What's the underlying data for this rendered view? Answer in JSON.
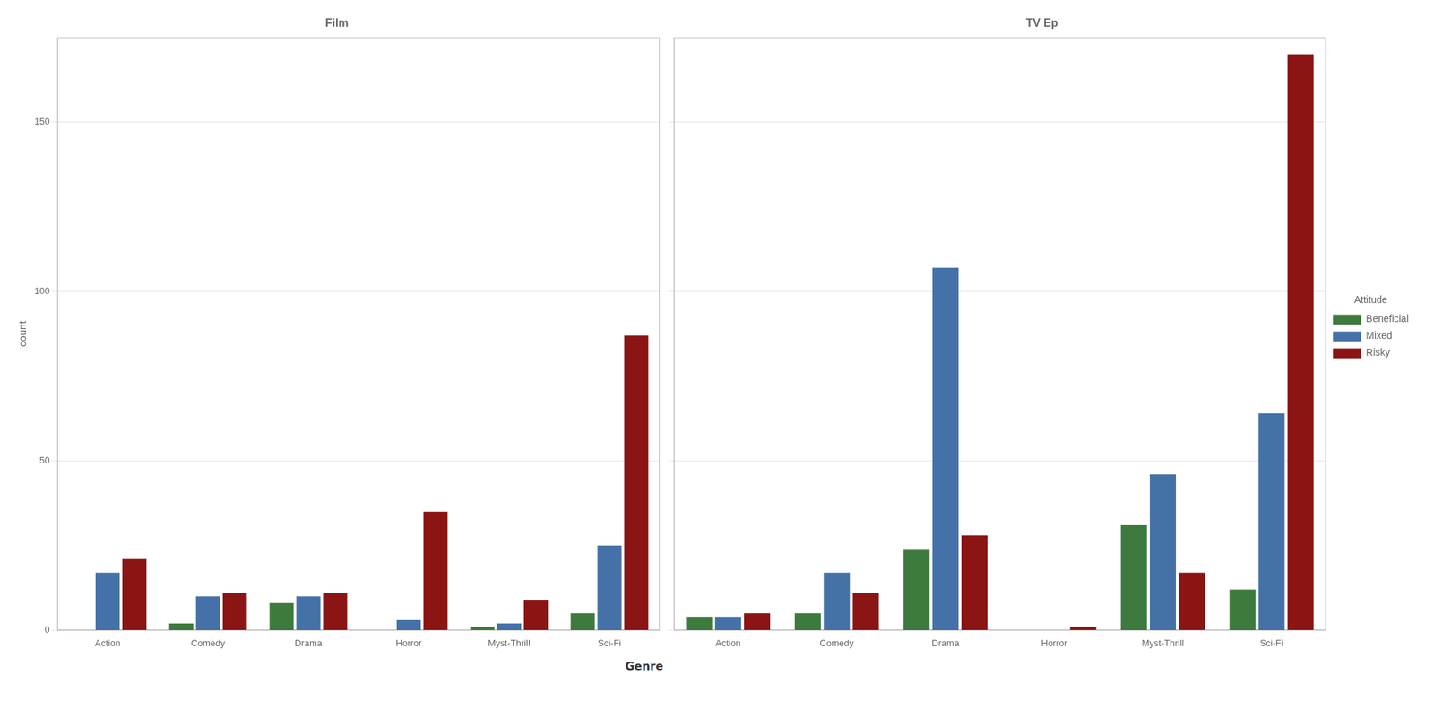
{
  "chart_data": [
    {
      "type": "bar",
      "title": "Film",
      "categories": [
        "Action",
        "Comedy",
        "Drama",
        "Horror",
        "Myst-Thrill",
        "Sci-Fi"
      ],
      "series": [
        {
          "name": "Beneficial",
          "color": "#3d7a3d",
          "values": [
            0,
            2,
            8,
            0,
            1,
            5
          ]
        },
        {
          "name": "Mixed",
          "color": "#4472a8",
          "values": [
            17,
            10,
            10,
            3,
            2,
            25
          ]
        },
        {
          "name": "Risky",
          "color": "#8b1414",
          "values": [
            21,
            11,
            11,
            35,
            9,
            87
          ]
        }
      ],
      "ylabel": "count",
      "xlabel": "Genre",
      "ylim": [
        0,
        175
      ],
      "yticks": [
        0,
        50,
        100,
        150
      ],
      "grid": true
    },
    {
      "type": "bar",
      "title": "TV Ep",
      "categories": [
        "Action",
        "Comedy",
        "Drama",
        "Horror",
        "Myst-Thrill",
        "Sci-Fi"
      ],
      "series": [
        {
          "name": "Beneficial",
          "color": "#3d7a3d",
          "values": [
            4,
            5,
            24,
            0,
            31,
            12
          ]
        },
        {
          "name": "Mixed",
          "color": "#4472a8",
          "values": [
            4,
            17,
            107,
            0,
            46,
            64
          ]
        },
        {
          "name": "Risky",
          "color": "#8b1414",
          "values": [
            5,
            11,
            28,
            1,
            17,
            170
          ]
        }
      ],
      "ylim": [
        0,
        175
      ],
      "yticks": [
        0,
        50,
        100,
        150
      ],
      "grid": true,
      "tick_labels": "x",
      "legend": "right",
      "legend_title": "Attitude"
    }
  ]
}
